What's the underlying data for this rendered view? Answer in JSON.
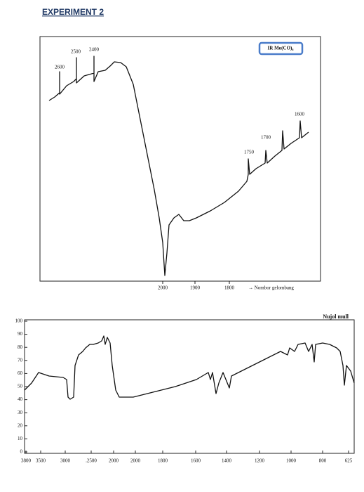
{
  "title": "EXPERIMENT 2",
  "figure_1": {
    "label": "IR Mo(CO)₆",
    "calibration_labels": [
      "2600",
      "2500",
      "2400",
      "1750",
      "1700",
      "1600"
    ],
    "x_tick_labels": [
      "2000",
      "1900",
      "1800"
    ],
    "x_axis_label": "→ Nombor gelombang"
  },
  "figure_2": {
    "title": "Nujol mull",
    "y_tick_labels": [
      "100",
      "90",
      "80",
      "70",
      "60",
      "50",
      "40",
      "30",
      "20",
      "10",
      "0"
    ],
    "x_tick_labels": [
      "3800",
      "3500",
      "3000",
      ".2500",
      "2000",
      "2000",
      "1800",
      "1600",
      "1400",
      "1200",
      "1000",
      "800",
      "625"
    ]
  }
}
